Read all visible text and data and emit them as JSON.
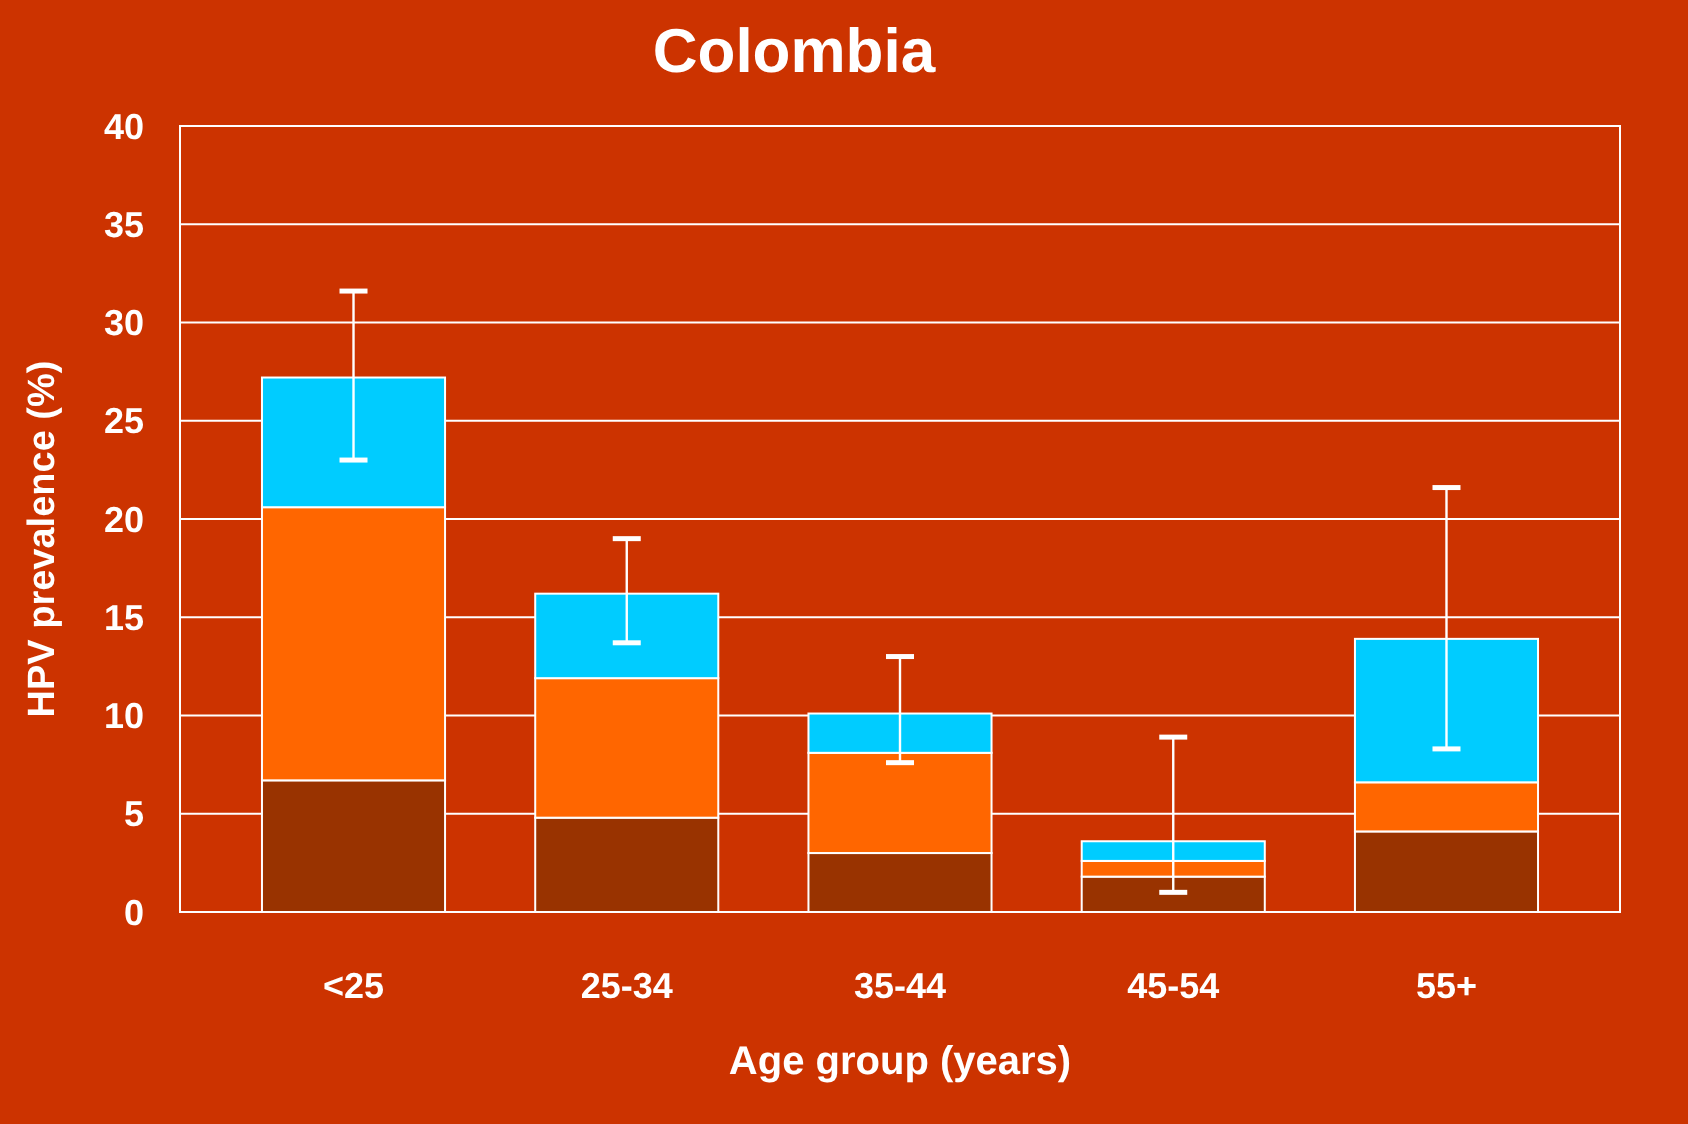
{
  "chart_data": {
    "type": "bar",
    "title": "Colombia",
    "xlabel": "Age group (years)",
    "ylabel": "HPV prevalence (%)",
    "categories": [
      "<25",
      "25-34",
      "35-44",
      "45-54",
      "55+"
    ],
    "stacked": true,
    "series": [
      {
        "color": "#993300",
        "values": [
          6.7,
          4.8,
          3.0,
          1.8,
          4.1
        ]
      },
      {
        "color": "#ff6600",
        "values": [
          13.9,
          7.1,
          5.1,
          0.8,
          2.5
        ]
      },
      {
        "color": "#00ccff",
        "values": [
          6.6,
          4.3,
          2.0,
          1.0,
          7.3
        ],
        "errors": [
          [
            23.0,
            31.6
          ],
          [
            13.7,
            19.0
          ],
          [
            7.6,
            13.0
          ],
          [
            1.0,
            8.9
          ],
          [
            8.3,
            21.6
          ]
        ]
      }
    ],
    "ylim": [
      0,
      40
    ],
    "yticks": [
      0,
      5,
      10,
      15,
      20,
      25,
      30,
      35,
      40
    ],
    "grid": "y"
  }
}
